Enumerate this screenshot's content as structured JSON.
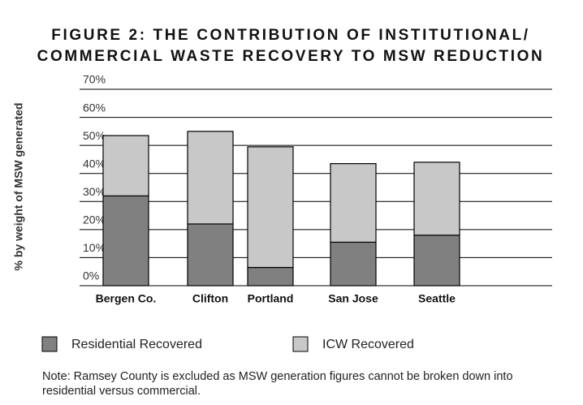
{
  "chart_data": {
    "type": "stacked_bar",
    "title": "FIGURE 2:  THE CONTRIBUTION OF INSTITUTIONAL/",
    "title_line2": "COMMERCIAL WASTE RECOVERY TO MSW REDUCTION",
    "y_label": "% by weight of MSW generated",
    "categories": [
      "Bergen Co.",
      "Clifton",
      "Portland",
      "San Jose",
      "Seattle"
    ],
    "series": [
      {
        "name": "Residential Recovered",
        "color": "#808080",
        "values": [
          32,
          22,
          6.5,
          15.5,
          18
        ]
      },
      {
        "name": "ICW Recovered",
        "color": "#c8c8c8",
        "values": [
          21.5,
          33,
          43,
          28,
          26
        ]
      }
    ],
    "ylim": [
      0,
      70
    ],
    "yticks": [
      {
        "value": 0,
        "label": "0%"
      },
      {
        "value": 10,
        "label": "10%"
      },
      {
        "value": 20,
        "label": "20%"
      },
      {
        "value": 30,
        "label": "30%"
      },
      {
        "value": 40,
        "label": "40%"
      },
      {
        "value": 50,
        "label": "50%"
      },
      {
        "value": 60,
        "label": "60%"
      },
      {
        "value": 70,
        "label": "70%"
      }
    ],
    "grid": true,
    "note": "Note:  Ramsey County is excluded as MSW generation figures cannot be broken down into residential versus commercial."
  }
}
